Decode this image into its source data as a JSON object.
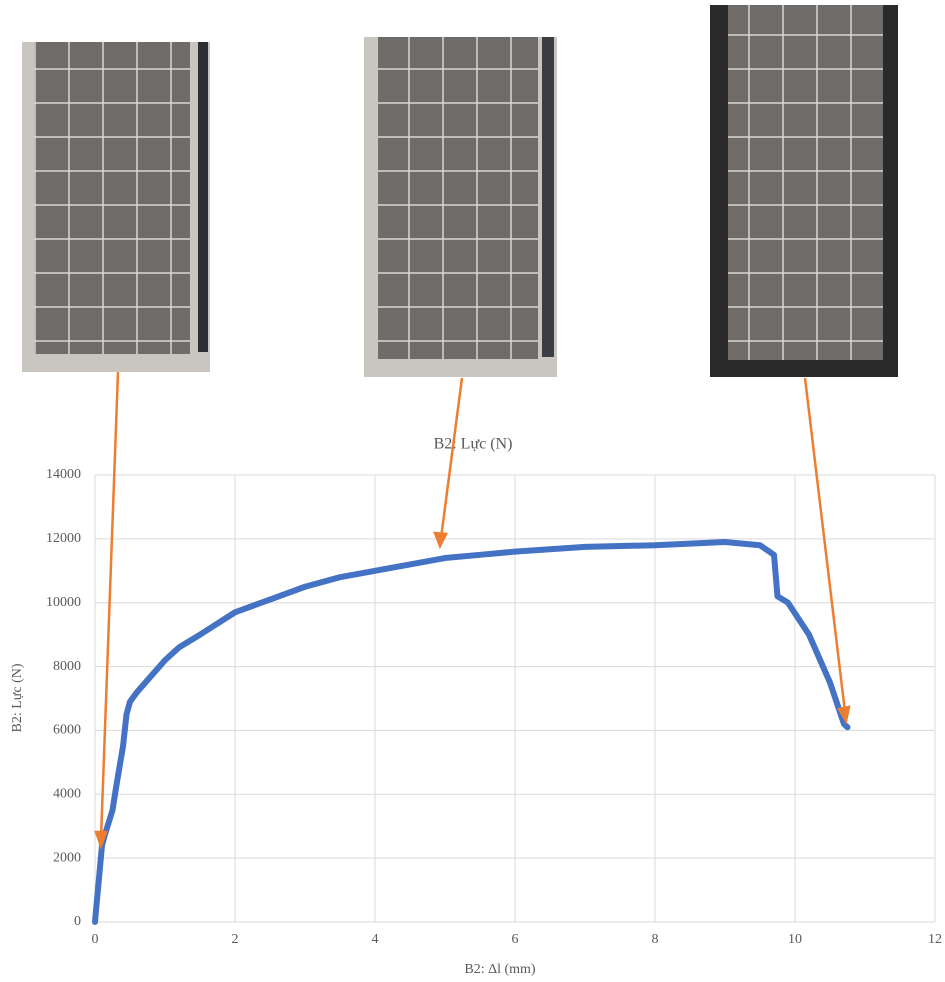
{
  "chart_data": {
    "type": "line",
    "title": "B2: Lực (N)",
    "x_label": "B2: Δl (mm)",
    "y_label": "B2: Lực (N)",
    "xlim": [
      0,
      12
    ],
    "xticks": [
      0,
      2,
      4,
      6,
      8,
      10,
      12
    ],
    "ylim": [
      0,
      14000
    ],
    "yticks": [
      0,
      2000,
      4000,
      6000,
      8000,
      10000,
      12000,
      14000
    ],
    "grid": true,
    "series": [
      {
        "color": "#4472c4",
        "x": [
          0,
          0.02,
          0.05,
          0.1,
          0.15,
          0.25,
          0.3,
          0.4,
          0.45,
          0.5,
          0.6,
          0.8,
          1,
          1.2,
          1.5,
          2,
          2.5,
          3,
          3.5,
          4,
          4.5,
          5,
          5.5,
          6,
          7,
          8,
          9,
          9.5,
          9.7,
          9.75,
          9.9,
          10.2,
          10.5,
          10.7,
          10.75
        ],
        "values": [
          0,
          500,
          1200,
          2400,
          2800,
          3500,
          4200,
          5500,
          6500,
          6900,
          7200,
          7700,
          8200,
          8600,
          9000,
          9700,
          10100,
          10500,
          10800,
          11000,
          11200,
          11400,
          11500,
          11600,
          11750,
          11800,
          11900,
          11800,
          11500,
          10200,
          10000,
          9000,
          7500,
          6200,
          6100
        ]
      }
    ]
  }
}
